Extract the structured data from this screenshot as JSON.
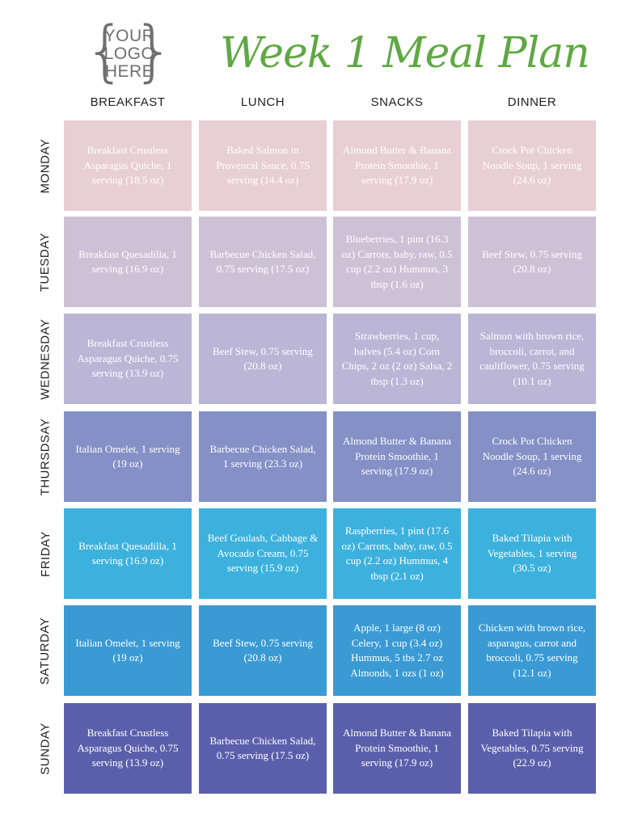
{
  "logo": {
    "line1": "YOUR",
    "line2": "LOGO",
    "line3": "HERE"
  },
  "title": "Week 1 Meal Plan",
  "columns": [
    "BREAKFAST",
    "LUNCH",
    "SNACKS",
    "DINNER"
  ],
  "days": [
    {
      "name": "MONDAY",
      "color": "#e8cfd4",
      "meals": [
        "Breakfast Crustless Asparagus Quiche, 1 serving (18.5 oz)",
        "Baked Salmon in Provencal Sauce, 0.75 serving (14.4 oz)",
        "Almond Butter & Banana Protein Smoothie, 1 serving (17.9 oz)",
        "Crock Pot Chicken Noodle Soup, 1 serving (24.6 oz)"
      ]
    },
    {
      "name": "TUESDAY",
      "color": "#cdc1d6",
      "meals": [
        "Breakfast Quesadilla, 1 serving (16.9 oz)",
        "Barbecue Chicken Salad, 0.75 serving (17.5 oz)",
        "Blueberries, 1 pint (16.3 oz) Carrots, baby, raw, 0.5 cup (2.2 oz) Hummus, 3 tbsp (1.6 oz)",
        "Beef Stew, 0.75 serving (20.8 oz)"
      ]
    },
    {
      "name": "WEDNESDAY",
      "color": "#bbb6d6",
      "meals": [
        "Breakfast Crustless Asparagus Quiche, 0.75 serving (13.9 oz)",
        "Beef Stew, 0.75 serving (20.8 oz)",
        "Strawberries, 1 cup, halves (5.4 oz) Corn Chips, 2 oz (2 oz) Salsa, 2 tbsp (1.3 oz)",
        "Salmon with brown rice, broccoli, carrot, and cauliflower, 0.75 serving (10.1 oz)"
      ]
    },
    {
      "name": "THURSDSAY",
      "color": "#8490c6",
      "meals": [
        "Italian Omelet, 1 serving (19 oz)",
        "Barbecue Chicken Salad, 1 serving (23.3 oz)",
        "Almond Butter & Banana Protein Smoothie, 1 serving (17.9 oz)",
        "Crock Pot Chicken Noodle Soup, 1 serving (24.6 oz)"
      ]
    },
    {
      "name": "FRIDAY",
      "color": "#3cb1dd",
      "meals": [
        "Breakfast Quesadilla, 1 serving (16.9 oz)",
        "Beef Goulash, Cabbage & Avocado Cream, 0.75 serving (15.9 oz)",
        "Raspberries, 1 pint (17.6 oz) Carrots, baby, raw, 0.5 cup (2.2 oz) Hummus, 4 tbsp (2.1 oz)",
        "Baked Tilapia with Vegetables, 1 serving (30.5 oz)"
      ]
    },
    {
      "name": "SATURDAY",
      "color": "#3a9ad4",
      "meals": [
        "Italian Omelet, 1 serving (19 oz)",
        "Beef Stew, 0.75 serving (20.8 oz)",
        "Apple, 1 large (8 oz) Celery, 1 cup (3.4 oz) Hummus, 5 tbs 2.7 oz Almonds, 1 ozs (1 oz)",
        "Chicken with brown rice, asparagus, carrot and broccoli, 0.75 serving (12.1 oz)"
      ]
    },
    {
      "name": "SUNDAY",
      "color": "#5b5fab",
      "meals": [
        "Breakfast Crustless Asparagus Quiche, 0.75 serving (13.9 oz)",
        "Barbecue Chicken Salad, 0.75 serving (17.5 oz)",
        "Almond Butter & Banana Protein Smoothie, 1 serving (17.9 oz)",
        "Baked Tilapia with Vegetables, 0.75 serving (22.9 oz)"
      ]
    }
  ]
}
